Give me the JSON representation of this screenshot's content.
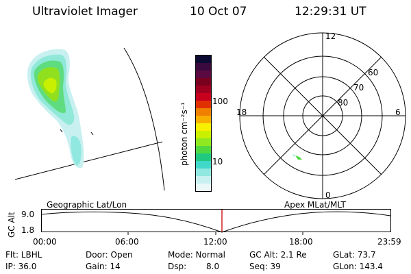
{
  "header": {
    "title": "Ultraviolet Imager",
    "date": "10 Oct 07",
    "time": "12:29:31 UT"
  },
  "colorbar": {
    "label": "photon cm⁻²s⁻¹",
    "ticks": [
      "100",
      "10"
    ],
    "colors": [
      "#0a0a32",
      "#3a0a3e",
      "#5a0a40",
      "#7a0020",
      "#a00020",
      "#c8001e",
      "#e03000",
      "#f08000",
      "#f8b000",
      "#f8f000",
      "#c8f000",
      "#90e820",
      "#50d840",
      "#20c880",
      "#40d8c8",
      "#90e8e0",
      "#c8f0f0",
      "#eaf8f8"
    ]
  },
  "polar": {
    "labels": {
      "top": "12",
      "bottom": "0",
      "left": "18",
      "right": "6",
      "r60": "60",
      "r70": "70",
      "r80": "80"
    }
  },
  "timeline": {
    "yaxis_label": "GC Alt",
    "y_ticks": [
      "9.0",
      "1.8"
    ],
    "left_label": "Geographic Lat/Lon",
    "right_label": "Apex MLat/MLT",
    "x_ticks": [
      "00:00",
      "06:00",
      "12:00",
      "18:00",
      "23:59"
    ]
  },
  "footer": {
    "row1": {
      "flt": "Flt: LBHL",
      "door": "Door: Open",
      "mode": "Mode: Normal",
      "gcalt": "GC Alt: 2.1 Re",
      "glat": "GLat: 73.7"
    },
    "row2": {
      "ip": "IP: 36.0",
      "gain": "Gain: 14",
      "dsp_label": "Dsp:",
      "dsp_val": "8.0",
      "seq": "Seq: 39",
      "glon": "GLon: 143.4"
    }
  }
}
